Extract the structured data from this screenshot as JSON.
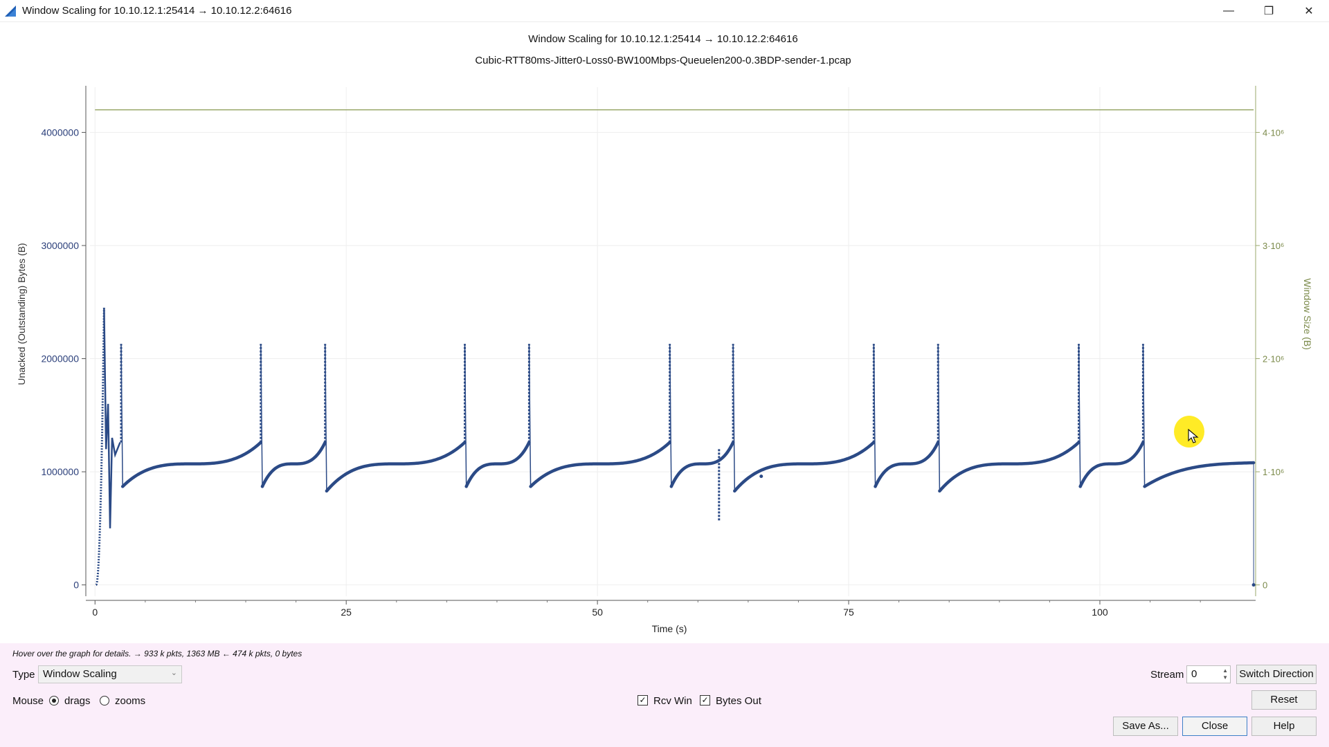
{
  "window": {
    "title": "Window Scaling for 10.10.12.1:25414 → 10.10.12.2:64616",
    "controls": [
      "—",
      "❐",
      "✕"
    ]
  },
  "graph": {
    "title": "Window Scaling for 10.10.12.1:25414 → 10.10.12.2:64616",
    "subtitle": "Cubic-RTT80ms-Jitter0-Loss0-BW100Mbps-Queuelen200-0.3BDP-sender-1.pcap"
  },
  "chart_data": {
    "type": "scatter",
    "xlabel": "Time (s)",
    "ylabel": "Unacked (Outstanding) Bytes (B)",
    "y2label": "Window Size (B)",
    "xlim": [
      -0.5,
      115.5
    ],
    "ylim": [
      -100000,
      4400000
    ],
    "x_ticks": [
      "0",
      "25",
      "50",
      "75",
      "100"
    ],
    "y_ticks": [
      "0",
      "1000000",
      "2000000",
      "3000000",
      "4000000"
    ],
    "y2_ticks": [
      "0",
      "1·10⁶",
      "2·10⁶",
      "3·10⁶",
      "4·10⁶"
    ],
    "series": [
      {
        "name": "Bytes Out",
        "color": "#2b4a86",
        "slow_start_peak": {
          "x": 0.9,
          "y": 2450000
        },
        "loss_events": [
          {
            "x": 2.6,
            "peak": 2130000,
            "floor": 870000,
            "pre": 1260000
          },
          {
            "x": 16.5,
            "peak": 2130000,
            "floor": 870000,
            "pre": 1260000
          },
          {
            "x": 22.9,
            "peak": 2130000,
            "floor": 830000,
            "pre": 1260000
          },
          {
            "x": 36.8,
            "peak": 2130000,
            "floor": 870000,
            "pre": 1260000
          },
          {
            "x": 43.2,
            "peak": 2130000,
            "floor": 870000,
            "pre": 1260000
          },
          {
            "x": 57.2,
            "peak": 2130000,
            "floor": 870000,
            "pre": 1260000
          },
          {
            "x": 63.5,
            "peak": 2130000,
            "floor": 830000,
            "pre": 1260000
          },
          {
            "x": 77.5,
            "peak": 2130000,
            "floor": 870000,
            "pre": 1260000
          },
          {
            "x": 83.9,
            "peak": 2130000,
            "floor": 830000,
            "pre": 1260000
          },
          {
            "x": 97.9,
            "peak": 2130000,
            "floor": 870000,
            "pre": 1260000
          },
          {
            "x": 104.3,
            "peak": 2130000,
            "floor": 870000,
            "pre": 1260000
          }
        ],
        "plateau": 1070000,
        "end": {
          "x": 115.3,
          "y": 1080000
        }
      },
      {
        "name": "Rcv Win",
        "color": "#9aa86b",
        "constant": 4200000
      }
    ],
    "grid": true,
    "legend": "none"
  },
  "bottom": {
    "hover_info": "Hover over the graph for details. → 933 k pkts, 1363 MB ← 474 k pkts, 0 bytes",
    "type_label": "Type",
    "type_value": "Window Scaling",
    "mouse_label": "Mouse",
    "drags_label": "drags",
    "zooms_label": "zooms",
    "rcv_win_label": "Rcv Win",
    "bytes_out_label": "Bytes Out",
    "stream_label": "Stream",
    "stream_value": "0",
    "switch_direction": "Switch Direction",
    "reset": "Reset",
    "save_as": "Save As...",
    "close": "Close",
    "help": "Help"
  }
}
